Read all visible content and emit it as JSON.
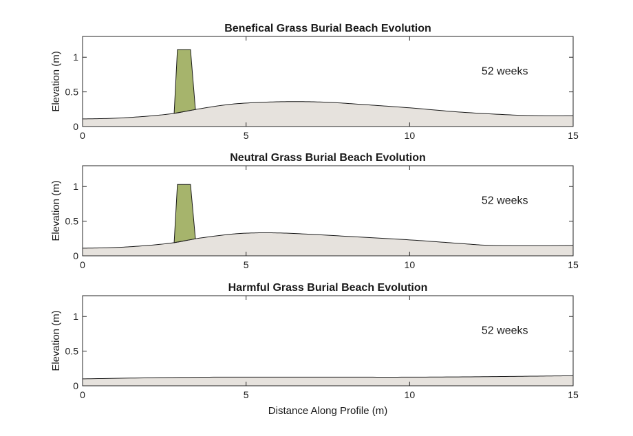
{
  "chart_data": [
    {
      "type": "area",
      "title": "Benefical Grass Burial Beach Evolution",
      "xlabel": "",
      "ylabel": "Elevation (m)",
      "xlim": [
        0,
        15
      ],
      "ylim": [
        0,
        1.3
      ],
      "xticks": [
        0,
        5,
        10,
        15
      ],
      "yticks": [
        0,
        0.5,
        1
      ],
      "ytick_labels": [
        "0",
        "0.5",
        "1"
      ],
      "grid": false,
      "annotation": {
        "text": "52 weeks",
        "x": 12.2,
        "y": 0.8
      },
      "colors": {
        "sand": "#e6e2dd",
        "grass": "#a6b46c"
      },
      "series": [
        {
          "x": [
            0,
            1,
            2,
            2.8,
            3.5,
            4.5,
            5.5,
            6.5,
            7.5,
            8.5,
            10,
            11.5,
            13,
            14,
            15
          ],
          "values": [
            0.11,
            0.12,
            0.15,
            0.19,
            0.25,
            0.32,
            0.35,
            0.36,
            0.35,
            0.32,
            0.27,
            0.21,
            0.17,
            0.155,
            0.155
          ]
        }
      ],
      "grass": {
        "x": [
          2.8,
          2.9,
          3.3,
          3.45
        ],
        "y_top": 1.11
      }
    },
    {
      "type": "area",
      "title": "Neutral Grass Burial Beach Evolution",
      "xlabel": "",
      "ylabel": "Elevation (m)",
      "xlim": [
        0,
        15
      ],
      "ylim": [
        0,
        1.3
      ],
      "xticks": [
        0,
        5,
        10,
        15
      ],
      "yticks": [
        0,
        0.5,
        1
      ],
      "ytick_labels": [
        "0",
        "0.5",
        "1"
      ],
      "grid": false,
      "annotation": {
        "text": "52 weeks",
        "x": 12.2,
        "y": 0.8
      },
      "colors": {
        "sand": "#e6e2dd",
        "grass": "#a6b46c"
      },
      "series": [
        {
          "x": [
            0,
            1,
            2,
            2.8,
            3.5,
            4.5,
            5.2,
            6,
            7,
            8.5,
            10,
            11.5,
            12.5,
            14,
            15
          ],
          "values": [
            0.11,
            0.12,
            0.15,
            0.19,
            0.25,
            0.31,
            0.33,
            0.33,
            0.31,
            0.27,
            0.23,
            0.18,
            0.15,
            0.145,
            0.15
          ]
        }
      ],
      "grass": {
        "x": [
          2.8,
          2.9,
          3.3,
          3.45
        ],
        "y_top": 1.03
      }
    },
    {
      "type": "area",
      "title": "Harmful Grass Burial Beach Evolution",
      "xlabel": "Distance Along Profile (m)",
      "ylabel": "Elevation (m)",
      "xlim": [
        0,
        15
      ],
      "ylim": [
        0,
        1.3
      ],
      "xticks": [
        0,
        5,
        10,
        15
      ],
      "yticks": [
        0,
        0.5,
        1
      ],
      "ytick_labels": [
        "0",
        "0.5",
        "1"
      ],
      "grid": false,
      "annotation": {
        "text": "52 weeks",
        "x": 12.2,
        "y": 0.8
      },
      "colors": {
        "sand": "#e6e2dd",
        "grass": "#a6b46c"
      },
      "series": [
        {
          "x": [
            0,
            2,
            4,
            6,
            8,
            10,
            12,
            14,
            15
          ],
          "values": [
            0.1,
            0.115,
            0.125,
            0.125,
            0.125,
            0.125,
            0.13,
            0.14,
            0.145
          ]
        }
      ],
      "grass": null
    }
  ]
}
